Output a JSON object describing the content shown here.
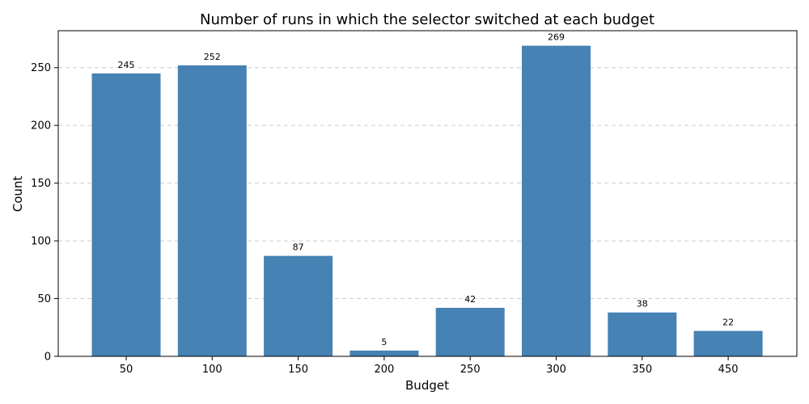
{
  "chart_data": {
    "type": "bar",
    "title": "Number of runs in which the selector switched at each budget",
    "xlabel": "Budget",
    "ylabel": "Count",
    "categories": [
      "50",
      "100",
      "150",
      "200",
      "250",
      "300",
      "350",
      "450"
    ],
    "values": [
      245,
      252,
      87,
      5,
      42,
      269,
      38,
      22
    ],
    "ylim": [
      0,
      282
    ],
    "yticks": [
      0,
      50,
      100,
      150,
      200,
      250
    ],
    "grid": "y-dashed",
    "bar_color": "#4682b4"
  }
}
